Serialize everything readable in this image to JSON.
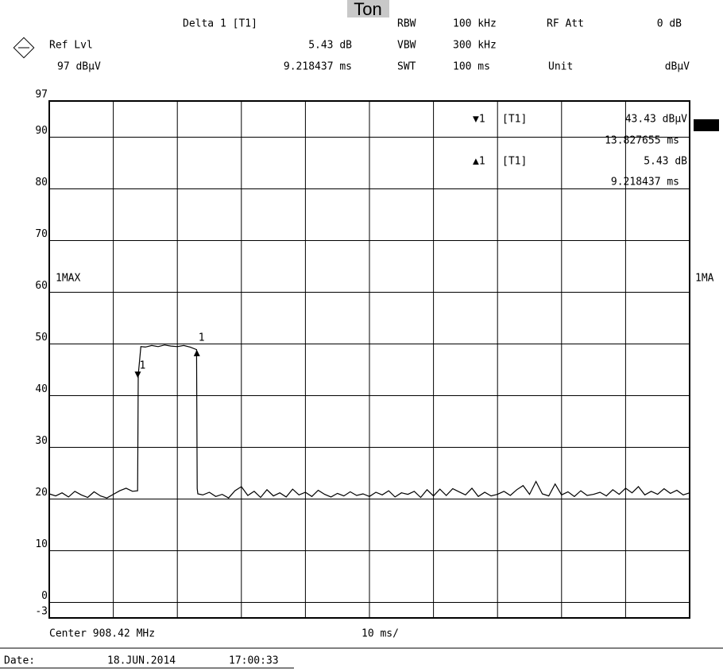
{
  "chart_data": {
    "type": "line",
    "title": "Ton",
    "header": {
      "delta_label": "Delta 1 [T1]",
      "delta_level": "5.43 dB",
      "delta_time": "9.218437 ms",
      "rbw_label": "RBW",
      "rbw": "100 kHz",
      "rf_att_label": "RF Att",
      "rf_att": "0 dB",
      "vbw_label": "VBW",
      "vbw": "300 kHz",
      "swt_label": "SWT",
      "swt": "100 ms",
      "unit_label": "Unit",
      "unit": "dBμV",
      "ref_lvl_label": "Ref Lvl",
      "ref_lvl": "97 dBμV"
    },
    "marker_info": [
      {
        "id": "▼1",
        "trace": "[T1]",
        "level": "43.43 dBμV",
        "time": "13.827655 ms"
      },
      {
        "id": "▲1",
        "trace": "[T1]",
        "level": "5.43 dB",
        "time": "9.218437 ms"
      }
    ],
    "trace_label_right": "1MA",
    "x_label_left": "Center 908.42 MHz",
    "x_label_center": "10 ms/",
    "footer": {
      "date_label": "Date:",
      "date": "18.JUN.2014",
      "time": "17:00:33"
    },
    "xlim": [
      0,
      100
    ],
    "ylim": [
      -3,
      97
    ],
    "yticks": [
      -3,
      0,
      10,
      20,
      30,
      40,
      50,
      60,
      70,
      80,
      90,
      97
    ],
    "x": [
      0,
      1,
      2,
      3,
      4,
      5,
      6,
      7,
      8,
      9,
      10,
      11,
      12,
      13,
      13.8,
      13.9,
      14.3,
      15,
      16,
      17,
      18,
      19,
      20,
      21,
      22,
      23.0,
      23.1,
      23.2,
      24,
      25,
      26,
      27,
      28,
      29,
      30,
      31,
      32,
      33,
      34,
      35,
      36,
      37,
      38,
      39,
      40,
      41,
      42,
      43,
      44,
      45,
      46,
      47,
      48,
      49,
      50,
      51,
      52,
      53,
      54,
      55,
      56,
      57,
      58,
      59,
      60,
      61,
      62,
      63,
      64,
      65,
      66,
      67,
      68,
      69,
      70,
      71,
      72,
      73,
      74,
      75,
      76,
      77,
      78,
      79,
      80,
      81,
      82,
      83,
      84,
      85,
      86,
      87,
      88,
      89,
      90,
      91,
      92,
      93,
      94,
      95,
      96,
      97,
      98,
      99,
      100
    ],
    "series": [
      {
        "name": "1MAX",
        "color": "#000000",
        "values": [
          21,
          20.6,
          21.2,
          20.4,
          21.5,
          20.8,
          20.3,
          21.4,
          20.6,
          20.2,
          20.9,
          21.6,
          22.1,
          21.5,
          21.6,
          44,
          49.5,
          49.4,
          49.7,
          49.5,
          49.8,
          49.6,
          49.5,
          49.7,
          49.4,
          48.9,
          22,
          21,
          20.8,
          21.3,
          20.5,
          20.9,
          20.2,
          21.6,
          22.4,
          20.7,
          21.5,
          20.3,
          21.8,
          20.6,
          21.2,
          20.4,
          21.9,
          20.8,
          21.3,
          20.5,
          21.7,
          20.9,
          20.4,
          21.1,
          20.6,
          21.4,
          20.7,
          21.0,
          20.5,
          21.3,
          20.8,
          21.6,
          20.4,
          21.2,
          20.9,
          21.5,
          20.3,
          21.8,
          20.6,
          21.9,
          20.7,
          22.0,
          21.4,
          20.8,
          22.1,
          20.5,
          21.3,
          20.6,
          20.9,
          21.5,
          20.7,
          21.8,
          22.6,
          20.9,
          23.4,
          21.0,
          20.6,
          22.9,
          20.8,
          21.4,
          20.5,
          21.6,
          20.7,
          20.9,
          21.3,
          20.6,
          21.8,
          20.9,
          22.1,
          21.2,
          22.4,
          20.8,
          21.5,
          20.9,
          22.0,
          21.1,
          21.7,
          20.8,
          21.2
        ]
      }
    ],
    "markers": [
      {
        "label": "1",
        "x": 13.827655,
        "y": 43.43,
        "shape": "down"
      },
      {
        "label": "1",
        "x": 23.046092,
        "y": 48.86,
        "shape": "up"
      }
    ]
  }
}
